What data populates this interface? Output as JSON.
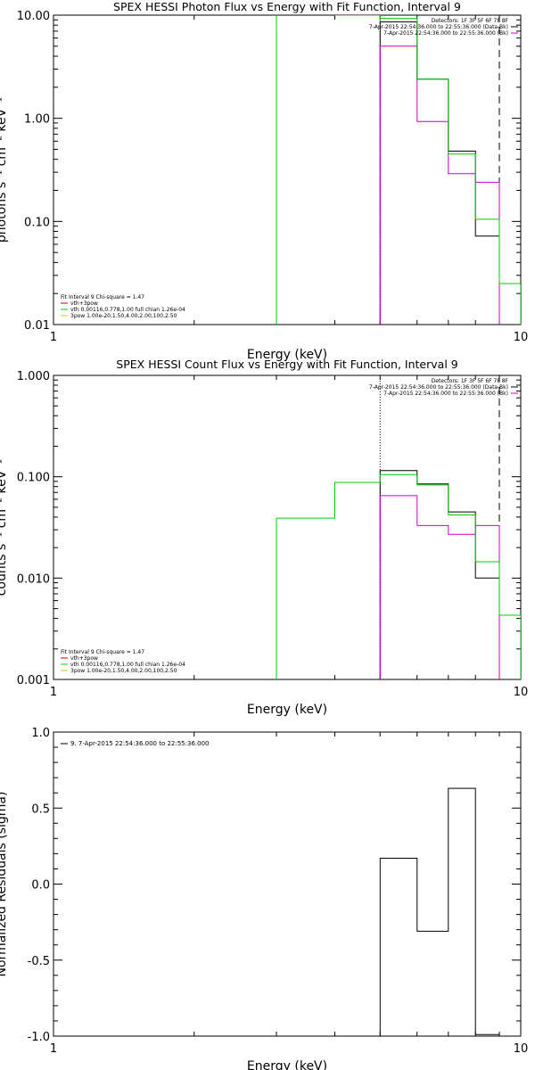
{
  "chart_data": [
    {
      "type": "line",
      "title": "SPEX HESSI Photon Flux vs Energy with Fit Function, Interval 9",
      "xlabel": "Energy (keV)",
      "ylabel": "photons s⁻¹ cm⁻² keV⁻¹",
      "xscale": "log",
      "yscale": "log",
      "xlim": [
        1,
        10
      ],
      "ylim": [
        0.01,
        10
      ],
      "xticks": [
        "1",
        "10"
      ],
      "yticks": [
        "0.01",
        "0.10",
        "1.00",
        "10.00"
      ],
      "legend_right": [
        {
          "text": "Detectors: 1F 3F 5F 6F 7F 8F",
          "color": "#000000"
        },
        {
          "text": "7-Apr-2015 22:54:36.000 to 22:55:36.000 (Data-Bk)",
          "color": "#000000"
        },
        {
          "text": "7-Apr-2015 22:54:36.000 to 22:55:36.000 (Bk)",
          "color": "#cc00cc"
        }
      ],
      "legend_left": [
        {
          "text": "Fit Interval 9   Chi-square = 1.47",
          "color": ""
        },
        {
          "text": "vth+3pow",
          "color": "#cc0000"
        },
        {
          "text": "vth 0.00116,0.778,1.00  full chian 1.26e-04",
          "color": "#00cc00"
        },
        {
          "text": "3pow 1.00e-20,1.50,4.00,2.00,100,2.50",
          "color": "#cccc00"
        }
      ],
      "vlines": [
        {
          "x": 5,
          "style": "dotted",
          "color": "#000000"
        },
        {
          "x": 9,
          "style": "dashed",
          "color": "#000000"
        }
      ],
      "series": [
        {
          "name": "Data-Bk",
          "color": "#000000",
          "edges": [
            5,
            6,
            7,
            8,
            9
          ],
          "values": [
            8.6,
            2.4,
            0.48,
            0.072
          ]
        },
        {
          "name": "Bk",
          "color": "#cc00cc",
          "edges": [
            5,
            6,
            7,
            8,
            9
          ],
          "values": [
            5.0,
            0.93,
            0.29,
            0.24
          ]
        },
        {
          "name": "vth+3pow",
          "color": "#00cc00",
          "edges": [
            3,
            4,
            5,
            6,
            7,
            8,
            9,
            10
          ],
          "values": [
            11,
            10,
            9.3,
            2.4,
            0.45,
            0.105,
            0.025
          ]
        }
      ]
    },
    {
      "type": "line",
      "title": "SPEX HESSI Count Flux vs Energy with Fit Function, Interval 9",
      "xlabel": "Energy (keV)",
      "ylabel": "counts s⁻¹ cm⁻² keV⁻¹",
      "xscale": "log",
      "yscale": "log",
      "xlim": [
        1,
        10
      ],
      "ylim": [
        0.001,
        1
      ],
      "xticks": [
        "1",
        "10"
      ],
      "yticks": [
        "0.001",
        "0.010",
        "0.100",
        "1.000"
      ],
      "legend_right": [
        {
          "text": "Detectors: 1F 3F 5F 6F 7F 8F",
          "color": "#000000"
        },
        {
          "text": "7-Apr-2015 22:54:36.000 to 22:55:36.000 (Data-Bk)",
          "color": "#000000"
        },
        {
          "text": "7-Apr-2015 22:54:36.000 to 22:55:36.000 (Bk)",
          "color": "#cc00cc"
        }
      ],
      "legend_left": [
        {
          "text": "Fit Interval 9   Chi-square = 1.47",
          "color": ""
        },
        {
          "text": "vth+3pow",
          "color": "#cc0000"
        },
        {
          "text": "vth 0.00116,0.778,1.00  full chian 1.26e-04",
          "color": "#00cc00"
        },
        {
          "text": "3pow 1.00e-20,1.50,4.00,2.00,100,2.50",
          "color": "#cccc00"
        }
      ],
      "vlines": [
        {
          "x": 5,
          "style": "dotted",
          "color": "#000000"
        },
        {
          "x": 9,
          "style": "dashed",
          "color": "#000000"
        }
      ],
      "series": [
        {
          "name": "Data-Bk",
          "color": "#000000",
          "edges": [
            5,
            6,
            7,
            8,
            9
          ],
          "values": [
            0.115,
            0.085,
            0.045,
            0.01
          ]
        },
        {
          "name": "Bk",
          "color": "#cc00cc",
          "edges": [
            5,
            6,
            7,
            8,
            9
          ],
          "values": [
            0.065,
            0.033,
            0.027,
            0.033
          ]
        },
        {
          "name": "vth+3pow",
          "color": "#00cc00",
          "edges": [
            3,
            4,
            5,
            6,
            7,
            8,
            9,
            10
          ],
          "values": [
            0.039,
            0.088,
            0.105,
            0.083,
            0.042,
            0.0145,
            0.0043
          ]
        }
      ]
    },
    {
      "type": "line",
      "title": "",
      "xlabel": "Energy (keV)",
      "ylabel": "Normalized Residuals (sigma)",
      "xscale": "log",
      "yscale": "linear",
      "xlim": [
        1,
        10
      ],
      "ylim": [
        -1,
        1
      ],
      "xticks": [
        "1",
        "10"
      ],
      "yticks": [
        "-1.0",
        "-0.5",
        "0.0",
        "0.5",
        "1.0"
      ],
      "legend_left": [
        {
          "text": "9.  7-Apr-2015 22:54:36.000 to 22:55:36.000",
          "color": "#000000"
        }
      ],
      "series": [
        {
          "name": "",
          "color": "#000000",
          "edges": [
            5,
            6,
            7,
            8,
            9
          ],
          "values": [
            0.17,
            -0.31,
            0.63,
            -0.99
          ]
        }
      ]
    }
  ]
}
